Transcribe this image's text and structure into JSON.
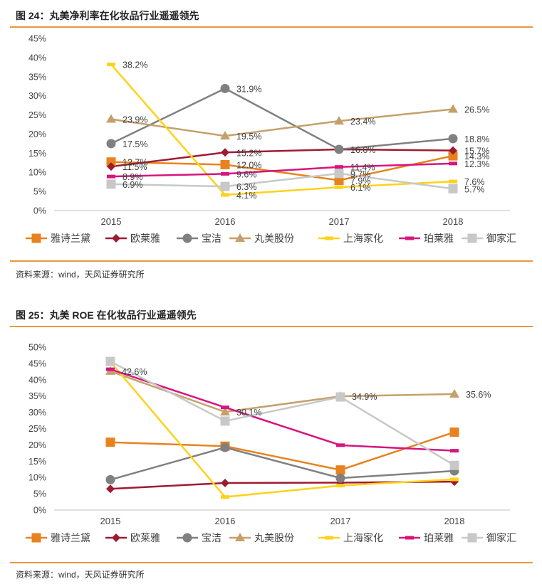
{
  "figures": [
    {
      "title": "图 24：丸美净利率在化妆品行业遥遥领先",
      "source": "资料来源：wind，天风证券研究所"
    },
    {
      "title": "图 25：丸美 ROE 在化妆品行业遥遥领先",
      "source": "资料来源：wind，天风证券研究所"
    }
  ],
  "colors": {
    "雅诗兰黛": "#e8821e",
    "欧莱雅": "#9e1b32",
    "宝洁": "#808080",
    "丸美股份": "#c4a06a",
    "上海家化": "#ffd21a",
    "珀莱雅": "#d6157f",
    "御家汇": "#c8c8c8"
  },
  "chart_data": [
    {
      "type": "line",
      "title": "图 24：丸美净利率在化妆品行业遥遥领先",
      "categories": [
        "2015",
        "2016",
        "2017",
        "2018"
      ],
      "ylim": [
        0,
        45
      ],
      "yticks": [
        "0%",
        "5%",
        "10%",
        "15%",
        "20%",
        "25%",
        "30%",
        "35%",
        "40%",
        "45%"
      ],
      "grid": false,
      "legend": "bottom",
      "series": [
        {
          "name": "雅诗兰黛",
          "marker": "square",
          "values": [
            12.7,
            12.0,
            7.9,
            14.3
          ],
          "labels": [
            "12.7%",
            "12.0%",
            "7.9%",
            "14.3%"
          ]
        },
        {
          "name": "欧莱雅",
          "marker": "diamond",
          "values": [
            11.5,
            15.2,
            16.0,
            15.7
          ],
          "labels": [
            "11.5%",
            "15.2%",
            "",
            "15.7%"
          ]
        },
        {
          "name": "宝洁",
          "marker": "circle",
          "values": [
            17.5,
            31.9,
            16.0,
            18.8
          ],
          "labels": [
            "17.5%",
            "31.9%",
            "16.0%",
            "18.8%"
          ]
        },
        {
          "name": "丸美股份",
          "marker": "triangle",
          "values": [
            23.9,
            19.5,
            23.4,
            26.5
          ],
          "labels": [
            "23.9%",
            "19.5%",
            "23.4%",
            "26.5%"
          ]
        },
        {
          "name": "上海家化",
          "marker": "dash",
          "values": [
            38.2,
            4.1,
            6.1,
            7.6
          ],
          "labels": [
            "38.2%",
            "4.1%",
            "6.1%",
            "7.6%"
          ]
        },
        {
          "name": "珀莱雅",
          "marker": "dash",
          "values": [
            8.9,
            9.6,
            11.4,
            12.3
          ],
          "labels": [
            "8.9%",
            "9.6%",
            "11.4%",
            "12.3%"
          ]
        },
        {
          "name": "御家汇",
          "marker": "square",
          "values": [
            6.9,
            6.3,
            9.7,
            5.7
          ],
          "labels": [
            "6.9%",
            "6.3%",
            "9.7%",
            "5.7%"
          ]
        }
      ]
    },
    {
      "type": "line",
      "title": "图 25：丸美 ROE 在化妆品行业遥遥领先",
      "categories": [
        "2015",
        "2016",
        "2017",
        "2018"
      ],
      "ylim": [
        0,
        50
      ],
      "yticks": [
        "0%",
        "5%",
        "10%",
        "15%",
        "20%",
        "25%",
        "30%",
        "35%",
        "40%",
        "45%",
        "50%"
      ],
      "grid": false,
      "legend": "bottom",
      "series": [
        {
          "name": "雅诗兰黛",
          "marker": "square",
          "values": [
            20.8,
            19.6,
            12.3,
            23.9
          ],
          "labels": [
            "",
            "",
            "",
            ""
          ]
        },
        {
          "name": "欧莱雅",
          "marker": "diamond",
          "values": [
            6.5,
            8.3,
            8.4,
            8.7
          ],
          "labels": [
            "",
            "",
            "",
            ""
          ]
        },
        {
          "name": "宝洁",
          "marker": "circle",
          "values": [
            9.3,
            19.2,
            9.8,
            12.0
          ],
          "labels": [
            "",
            "",
            "",
            ""
          ]
        },
        {
          "name": "丸美股份",
          "marker": "triangle",
          "values": [
            42.6,
            30.1,
            34.9,
            35.6
          ],
          "labels": [
            "42.6%",
            "30.1%",
            "34.9%",
            "35.6%"
          ]
        },
        {
          "name": "上海家化",
          "marker": "dash",
          "values": [
            45.5,
            4.0,
            7.5,
            9.4
          ],
          "labels": [
            "",
            "",
            "",
            ""
          ]
        },
        {
          "name": "珀莱雅",
          "marker": "dash",
          "values": [
            43.2,
            31.5,
            19.9,
            18.2
          ],
          "labels": [
            "",
            "",
            "",
            ""
          ]
        },
        {
          "name": "御家汇",
          "marker": "square",
          "values": [
            45.6,
            27.3,
            34.7,
            13.7
          ],
          "labels": [
            "",
            "",
            "",
            ""
          ]
        }
      ]
    }
  ]
}
